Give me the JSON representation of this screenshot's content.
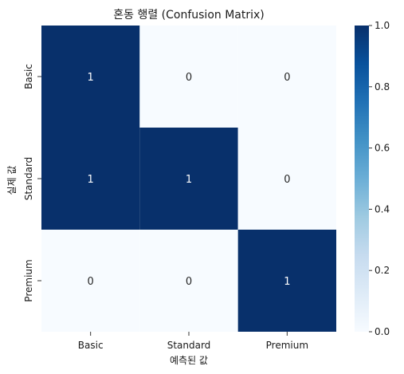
{
  "chart_data": {
    "type": "heatmap",
    "title": "혼동 행렬 (Confusion Matrix)",
    "xlabel": "예측된 값",
    "ylabel": "실제 값",
    "x_categories": [
      "Basic",
      "Standard",
      "Premium"
    ],
    "y_categories": [
      "Basic",
      "Standard",
      "Premium"
    ],
    "values": [
      [
        1,
        0,
        0
      ],
      [
        1,
        1,
        0
      ],
      [
        0,
        0,
        1
      ]
    ],
    "value_labels": [
      [
        "1",
        "0",
        "0"
      ],
      [
        "1",
        "1",
        "0"
      ],
      [
        "0",
        "0",
        "1"
      ]
    ],
    "colorbar": {
      "range": [
        0.0,
        1.0
      ],
      "ticks": [
        "0.0",
        "0.2",
        "0.4",
        "0.6",
        "0.8",
        "1.0"
      ],
      "colormap": "Blues"
    },
    "colors": {
      "high": "#08306b",
      "low": "#f7fbff",
      "high_text": "#ffffff",
      "low_text": "#262626"
    }
  }
}
